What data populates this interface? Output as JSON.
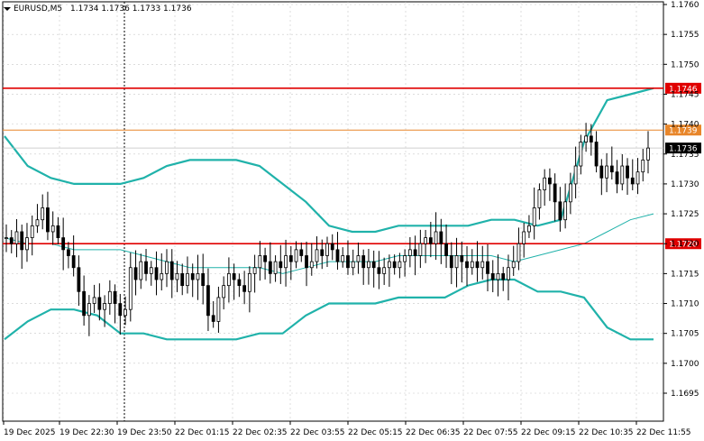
{
  "header": {
    "symbol": "EURUSD,M5",
    "ohlc": "1.1734 1.1736 1.1733 1.1736"
  },
  "colors": {
    "candles": "#000000",
    "grid": "#c8c8c8",
    "bollinger": "#20b2aa",
    "resistance": "#e00000",
    "level_1739": "#e8862a",
    "price_line": "#c0c0c0"
  },
  "chart_data": {
    "type": "candlestick",
    "instrument": "EURUSD",
    "timeframe": "M5",
    "ylim": [
      1.169,
      1.176
    ],
    "y_ticks": [
      "1.1760",
      "1.1755",
      "1.1750",
      "1.1745",
      "1.1740",
      "1.1735",
      "1.1730",
      "1.1725",
      "1.1720",
      "1.1715",
      "1.1710",
      "1.1705",
      "1.1700",
      "1.1695"
    ],
    "x_ticks": [
      "19 Dec 2025",
      "19 Dec 22:30",
      "19 Dec 23:50",
      "22 Dec 01:15",
      "22 Dec 02:35",
      "22 Dec 03:55",
      "22 Dec 05:15",
      "22 Dec 06:35",
      "22 Dec 07:55",
      "22 Dec 09:15",
      "22 Dec 10:35",
      "22 Dec 11:55"
    ],
    "horizontal_levels": [
      {
        "label": "1.1746",
        "value": 1.1746,
        "color": "#e00000"
      },
      {
        "label": "1.1739",
        "value": 1.1739,
        "color": "#e8862a"
      },
      {
        "label": "1.1720",
        "value": 1.172,
        "color": "#e00000"
      }
    ],
    "current_price": {
      "label": "1.1736",
      "value": 1.1736
    },
    "session_separator_x_index": 2,
    "candles_close": [
      1.1721,
      1.172,
      1.1722,
      1.1719,
      1.1721,
      1.1723,
      1.1724,
      1.1726,
      1.1722,
      1.1723,
      1.1721,
      1.1719,
      1.1718,
      1.1716,
      1.1712,
      1.1708,
      1.171,
      1.1711,
      1.1709,
      1.171,
      1.1712,
      1.171,
      1.1708,
      1.1709,
      1.1716,
      1.1714,
      1.1717,
      1.1715,
      1.1716,
      1.1714,
      1.1715,
      1.1717,
      1.1714,
      1.1715,
      1.1713,
      1.1715,
      1.1714,
      1.1715,
      1.1713,
      1.1708,
      1.1707,
      1.1711,
      1.1713,
      1.1715,
      1.1714,
      1.1713,
      1.1712,
      1.1715,
      1.1716,
      1.1718,
      1.1717,
      1.1715,
      1.1717,
      1.1716,
      1.1718,
      1.1717,
      1.1719,
      1.1718,
      1.1716,
      1.1717,
      1.1719,
      1.1718,
      1.172,
      1.1719,
      1.1717,
      1.1718,
      1.1716,
      1.1717,
      1.1718,
      1.1716,
      1.1717,
      1.1716,
      1.1715,
      1.1716,
      1.1717,
      1.1716,
      1.1717,
      1.1718,
      1.1719,
      1.1718,
      1.172,
      1.1721,
      1.172,
      1.1722,
      1.172,
      1.1718,
      1.1716,
      1.1718,
      1.1717,
      1.1716,
      1.1717,
      1.1716,
      1.1717,
      1.1715,
      1.1714,
      1.1715,
      1.1714,
      1.1716,
      1.1717,
      1.172,
      1.1722,
      1.1723,
      1.1726,
      1.1729,
      1.1731,
      1.173,
      1.1727,
      1.1724,
      1.1727,
      1.173,
      1.1733,
      1.1737,
      1.1738,
      1.1737,
      1.1733,
      1.1731,
      1.1733,
      1.1732,
      1.173,
      1.1733,
      1.1731,
      1.173,
      1.1732,
      1.1734,
      1.1736
    ],
    "bollinger_upper": [
      1.1738,
      1.1733,
      1.1731,
      1.173,
      1.173,
      1.173,
      1.1731,
      1.1733,
      1.1734,
      1.1734,
      1.1734,
      1.1733,
      1.173,
      1.1727,
      1.1723,
      1.1722,
      1.1722,
      1.1723,
      1.1723,
      1.1723,
      1.1723,
      1.1724,
      1.1724,
      1.1723,
      1.1724,
      1.1737,
      1.1744,
      1.1745,
      1.1746
    ],
    "bollinger_middle": [
      1.1721,
      1.172,
      1.172,
      1.1719,
      1.1719,
      1.1719,
      1.1718,
      1.1717,
      1.1716,
      1.1716,
      1.1716,
      1.1716,
      1.1715,
      1.1716,
      1.1717,
      1.1717,
      1.1717,
      1.1718,
      1.1718,
      1.1718,
      1.1718,
      1.1718,
      1.1717,
      1.1718,
      1.1719,
      1.172,
      1.1722,
      1.1724,
      1.1725
    ],
    "bollinger_lower": [
      1.1704,
      1.1707,
      1.1709,
      1.1709,
      1.1708,
      1.1705,
      1.1705,
      1.1704,
      1.1704,
      1.1704,
      1.1704,
      1.1705,
      1.1705,
      1.1708,
      1.171,
      1.171,
      1.171,
      1.1711,
      1.1711,
      1.1711,
      1.1713,
      1.1714,
      1.1714,
      1.1712,
      1.1712,
      1.1711,
      1.1706,
      1.1704,
      1.1704
    ]
  }
}
